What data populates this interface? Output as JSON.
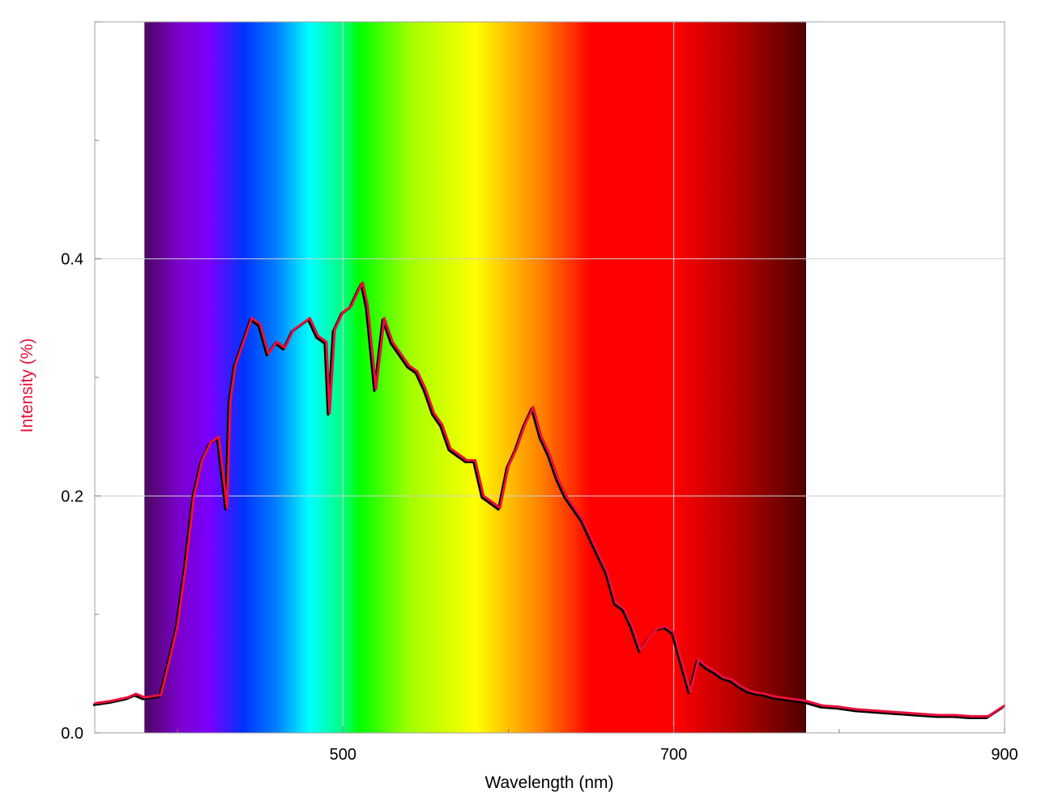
{
  "chart_data": {
    "type": "line",
    "title": "",
    "xlabel": "Wavelength (nm)",
    "ylabel": "Intensity (%)",
    "xlim": [
      350,
      900
    ],
    "ylim": [
      0,
      0.6
    ],
    "x_tick_labels": [
      "500",
      "700",
      "900"
    ],
    "y_tick_labels": [
      "0.0",
      "0.2",
      "0.4"
    ],
    "grid": true,
    "legend": "none",
    "colors": {
      "series_primary": "#e8103c",
      "series_shadow": "#000000",
      "ylabel": "#e8103c",
      "grid": "#cfcfcf"
    },
    "spectrum_band": {
      "range": [
        380,
        780
      ],
      "stops": [
        {
          "nm": 380,
          "color": "#4a0a5e"
        },
        {
          "nm": 400,
          "color": "#7a00c8"
        },
        {
          "nm": 420,
          "color": "#7a00ff"
        },
        {
          "nm": 440,
          "color": "#0033ff"
        },
        {
          "nm": 460,
          "color": "#0080ff"
        },
        {
          "nm": 480,
          "color": "#00ffff"
        },
        {
          "nm": 500,
          "color": "#00ff80"
        },
        {
          "nm": 510,
          "color": "#00ff00"
        },
        {
          "nm": 540,
          "color": "#a0ff00"
        },
        {
          "nm": 580,
          "color": "#ffff00"
        },
        {
          "nm": 620,
          "color": "#ff8000"
        },
        {
          "nm": 650,
          "color": "#ff0000"
        },
        {
          "nm": 700,
          "color": "#ff0000"
        },
        {
          "nm": 740,
          "color": "#b00000"
        },
        {
          "nm": 780,
          "color": "#500000"
        }
      ]
    },
    "series": [
      {
        "x": [
          350,
          360,
          370,
          375,
          380,
          390,
          395,
          400,
          405,
          410,
          415,
          420,
          425,
          430,
          432,
          435,
          440,
          445,
          450,
          455,
          460,
          465,
          470,
          475,
          480,
          485,
          490,
          492,
          495,
          500,
          505,
          510,
          512,
          515,
          520,
          525,
          530,
          535,
          540,
          545,
          550,
          555,
          560,
          565,
          570,
          575,
          580,
          585,
          590,
          595,
          600,
          605,
          610,
          615,
          620,
          625,
          630,
          635,
          640,
          645,
          650,
          655,
          660,
          665,
          670,
          675,
          680,
          685,
          690,
          695,
          700,
          705,
          710,
          715,
          720,
          725,
          730,
          735,
          740,
          745,
          750,
          755,
          760,
          765,
          770,
          775,
          780,
          785,
          790,
          800,
          810,
          820,
          830,
          840,
          850,
          860,
          870,
          880,
          890,
          900
        ],
        "y": [
          0.025,
          0.027,
          0.03,
          0.033,
          0.03,
          0.032,
          0.06,
          0.09,
          0.14,
          0.2,
          0.23,
          0.245,
          0.25,
          0.19,
          0.28,
          0.31,
          0.33,
          0.35,
          0.345,
          0.32,
          0.33,
          0.325,
          0.34,
          0.345,
          0.35,
          0.335,
          0.33,
          0.27,
          0.34,
          0.355,
          0.36,
          0.375,
          0.38,
          0.36,
          0.29,
          0.35,
          0.33,
          0.32,
          0.31,
          0.305,
          0.29,
          0.27,
          0.26,
          0.24,
          0.235,
          0.23,
          0.23,
          0.2,
          0.195,
          0.19,
          0.225,
          0.24,
          0.26,
          0.275,
          0.25,
          0.235,
          0.215,
          0.2,
          0.19,
          0.18,
          0.165,
          0.15,
          0.135,
          0.11,
          0.105,
          0.09,
          0.07,
          0.08,
          0.088,
          0.09,
          0.085,
          0.06,
          0.035,
          0.062,
          0.056,
          0.052,
          0.047,
          0.045,
          0.04,
          0.036,
          0.034,
          0.033,
          0.031,
          0.03,
          0.029,
          0.028,
          0.027,
          0.025,
          0.023,
          0.022,
          0.02,
          0.019,
          0.018,
          0.017,
          0.016,
          0.015,
          0.015,
          0.014,
          0.014,
          0.023
        ]
      }
    ]
  }
}
